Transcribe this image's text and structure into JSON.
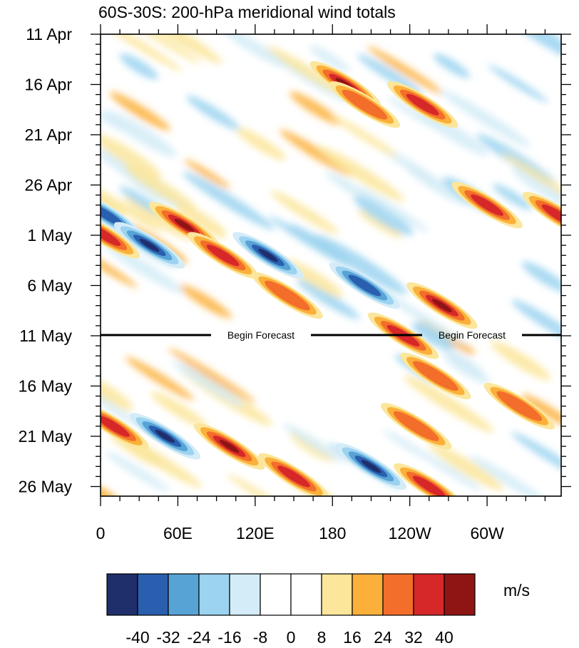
{
  "chart_data": {
    "type": "heatmap",
    "title": "60S-30S: 200-hPa meridional wind totals",
    "x_tick_labels": [
      "0",
      "60E",
      "120E",
      "180",
      "120W",
      "60W"
    ],
    "x_tick_values_deg_east": [
      0,
      60,
      120,
      180,
      240,
      300
    ],
    "x_range_deg_east": [
      0,
      357.5
    ],
    "y_tick_labels": [
      "11 Apr",
      "16 Apr",
      "21 Apr",
      "26 Apr",
      "1 May",
      "6 May",
      "11 May",
      "16 May",
      "21 May",
      "26 May"
    ],
    "y_range": [
      "11 Apr",
      "27 May"
    ],
    "y_direction": "time increases downward",
    "forecast_line": {
      "date": "11 May",
      "labels": [
        "Begin Forecast",
        "Begin Forecast"
      ]
    },
    "colorbar": {
      "unit": "m/s",
      "tick_labels": [
        "-40",
        "-32",
        "-24",
        "-16",
        "-8",
        "0",
        "8",
        "16",
        "24",
        "32",
        "40"
      ],
      "colors": [
        "#1f2f6b",
        "#2a5fb0",
        "#58a3d6",
        "#9bd3f0",
        "#d4ecf7",
        "#ffffff",
        "#ffffff",
        "#fbe69b",
        "#fbb03a",
        "#f36d2b",
        "#d62828",
        "#8f1414"
      ]
    },
    "features": [
      {
        "lon": 5,
        "date": "29 Apr",
        "sign": "negative",
        "peak": -32
      },
      {
        "lon": 38,
        "date": "2 May",
        "sign": "negative",
        "peak": -40
      },
      {
        "lon": 3,
        "date": "1 May",
        "sign": "positive",
        "peak": 32
      },
      {
        "lon": 65,
        "date": "30 Apr",
        "sign": "positive",
        "peak": 40
      },
      {
        "lon": 95,
        "date": "3 May",
        "sign": "positive",
        "peak": 32
      },
      {
        "lon": 130,
        "date": "3 May",
        "sign": "negative",
        "peak": -40
      },
      {
        "lon": 190,
        "date": "16 Apr",
        "sign": "positive",
        "peak": 40
      },
      {
        "lon": 205,
        "date": "18 Apr",
        "sign": "positive",
        "peak": 24
      },
      {
        "lon": 205,
        "date": "6 May",
        "sign": "negative",
        "peak": -32
      },
      {
        "lon": 265,
        "date": "8 May",
        "sign": "positive",
        "peak": 40
      },
      {
        "lon": 250,
        "date": "18 Apr",
        "sign": "positive",
        "peak": 32
      },
      {
        "lon": 300,
        "date": "28 Apr",
        "sign": "positive",
        "peak": 32
      },
      {
        "lon": 355,
        "date": "29 Apr",
        "sign": "positive",
        "peak": 32
      },
      {
        "lon": 100,
        "date": "22 May",
        "sign": "positive",
        "peak": 40
      },
      {
        "lon": 50,
        "date": "21 May",
        "sign": "negative",
        "peak": -40
      },
      {
        "lon": 10,
        "date": "20 May",
        "sign": "positive",
        "peak": 32
      },
      {
        "lon": 210,
        "date": "24 May",
        "sign": "negative",
        "peak": -40
      },
      {
        "lon": 255,
        "date": "26 May",
        "sign": "positive",
        "peak": 32
      },
      {
        "lon": 150,
        "date": "25 May",
        "sign": "positive",
        "peak": 32
      },
      {
        "lon": 245,
        "date": "20 May",
        "sign": "positive",
        "peak": 24
      },
      {
        "lon": 260,
        "date": "15 May",
        "sign": "positive",
        "peak": 24
      },
      {
        "lon": 325,
        "date": "18 May",
        "sign": "positive",
        "peak": 24
      },
      {
        "lon": 235,
        "date": "11 May",
        "sign": "positive",
        "peak": 32
      },
      {
        "lon": 145,
        "date": "7 May",
        "sign": "positive",
        "peak": 24
      }
    ]
  }
}
